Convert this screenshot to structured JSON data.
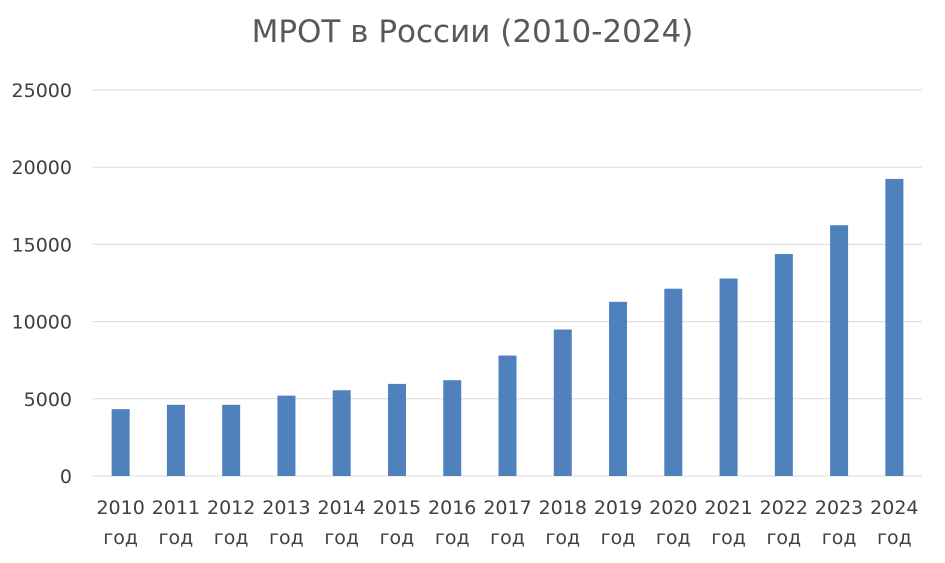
{
  "chart_data": {
    "type": "bar",
    "title": "МРОТ в России (2010-2024)",
    "xlabel": "",
    "ylabel": "",
    "categories": [
      [
        "2010",
        "год"
      ],
      [
        "2011",
        "год"
      ],
      [
        "2012",
        "год"
      ],
      [
        "2013",
        "год"
      ],
      [
        "2014",
        "год"
      ],
      [
        "2015",
        "год"
      ],
      [
        "2016",
        "год"
      ],
      [
        "2017",
        "год"
      ],
      [
        "2018",
        "год"
      ],
      [
        "2019",
        "год"
      ],
      [
        "2020",
        "год"
      ],
      [
        "2021",
        "год"
      ],
      [
        "2022",
        "год"
      ],
      [
        "2023",
        "год"
      ],
      [
        "2024",
        "год"
      ]
    ],
    "values": [
      4330,
      4611,
      4611,
      5205,
      5554,
      5965,
      6204,
      7800,
      9489,
      11280,
      12130,
      12792,
      14375,
      16242,
      19242
    ],
    "ylim": [
      0,
      25000
    ],
    "yticks": [
      "0",
      "5000",
      "10000",
      "15000",
      "20000",
      "25000"
    ],
    "grid": true,
    "legend": "none",
    "bar_color": "#4f81bd",
    "grid_color": "#d9d9d9"
  }
}
